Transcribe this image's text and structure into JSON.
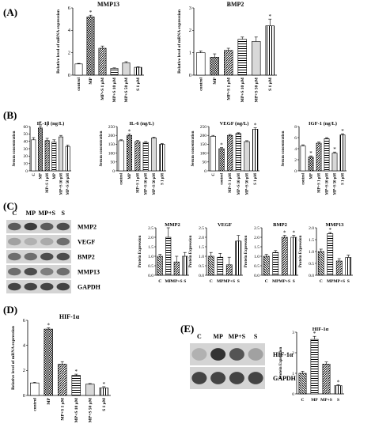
{
  "panels": {
    "A": "(A)",
    "B": "(B)",
    "C": "(C)",
    "D": "(D)",
    "E": "(E)"
  },
  "colors": {
    "ink": "#000000",
    "bar_fill_light": "#ffffff",
    "band_dark": "#2a2a2a",
    "membrane": "#d4d4d4"
  },
  "chart_data": [
    {
      "id": "A1",
      "type": "bar",
      "title": "MMP13",
      "ylabel": "Relative level of mRNA expression",
      "categories": [
        "control",
        "MP",
        "MP+S 1 μM",
        "MP+S 10 μM",
        "MP+S 50 μM",
        "S 1 μM"
      ],
      "values": [
        1.0,
        5.2,
        2.4,
        0.6,
        1.1,
        0.7
      ],
      "errors": [
        0.05,
        0.15,
        0.2,
        0.05,
        0.1,
        0.05
      ],
      "ylim": [
        0,
        6
      ],
      "yticks": [
        0,
        2,
        4,
        6
      ],
      "annotations": [
        "",
        "*",
        "",
        "",
        "",
        ""
      ]
    },
    {
      "id": "A2",
      "type": "bar",
      "title": "BMP2",
      "ylabel": "Relative level of mRNA expression",
      "categories": [
        "control",
        "MP",
        "MP+S 1 μM",
        "MP+S 10 μM",
        "MP+S 50 μM",
        "S 1 μM"
      ],
      "values": [
        1.0,
        0.8,
        1.1,
        1.6,
        1.5,
        2.2
      ],
      "errors": [
        0.08,
        0.15,
        0.1,
        0.1,
        0.2,
        0.3
      ],
      "ylim": [
        0,
        3
      ],
      "yticks": [
        0,
        1,
        2,
        3
      ],
      "annotations": [
        "",
        "",
        "",
        "",
        "",
        "*"
      ]
    },
    {
      "id": "B1",
      "type": "bar",
      "title": "IL-1β (ng/L)",
      "ylabel": "Serum concentration",
      "categories": [
        "C",
        "MP",
        "MP+S 1 μM",
        "MP",
        "MP+S 10 μM",
        "MP+S 50 μM"
      ],
      "values": [
        42,
        58,
        41,
        39,
        46,
        33
      ],
      "errors": [
        3,
        3,
        3,
        3,
        2,
        2
      ],
      "ylim": [
        0,
        60
      ],
      "yticks": [
        0,
        10,
        20,
        30,
        40,
        50,
        60
      ],
      "annotations": [
        "",
        "*",
        "",
        "",
        "",
        ""
      ]
    },
    {
      "id": "B2",
      "type": "bar",
      "title": "IL-6 (ng/L)",
      "ylabel": "Serum concentration",
      "categories": [
        "control",
        "MP",
        "MP+S 1 μM",
        "MP+S 10 μM",
        "MP+S 50 μM",
        "S 1 μM"
      ],
      "values": [
        170,
        200,
        165,
        160,
        185,
        150
      ],
      "errors": [
        5,
        8,
        6,
        5,
        5,
        5
      ],
      "ylim": [
        0,
        250
      ],
      "yticks": [
        0,
        50,
        100,
        150,
        200,
        250
      ],
      "annotations": [
        "",
        "*",
        "",
        "",
        "",
        ""
      ]
    },
    {
      "id": "B3",
      "type": "bar",
      "title": "VEGF (ng/L)",
      "ylabel": "Serum concentration",
      "categories": [
        "C",
        "control",
        "MP+S 1 μM",
        "MP+S 10 μM",
        "MP+S 50 μM",
        "S 1 μM"
      ],
      "values": [
        195,
        125,
        200,
        210,
        165,
        235
      ],
      "errors": [
        5,
        6,
        5,
        5,
        5,
        8
      ],
      "ylim": [
        0,
        250
      ],
      "yticks": [
        0,
        50,
        100,
        150,
        200,
        250
      ],
      "annotations": [
        "",
        "*",
        "",
        "",
        "",
        "*"
      ]
    },
    {
      "id": "B4",
      "type": "bar",
      "title": "IGF-1 (ng/L)",
      "ylabel": "Serum concentration",
      "categories": [
        "control",
        "MP",
        "MP+S 1 μM",
        "MP+S 10 μM",
        "MP+S 50 μM",
        "S 1 μM"
      ],
      "values": [
        4.5,
        2.5,
        5.0,
        5.8,
        3.2,
        6.5
      ],
      "errors": [
        0.2,
        0.2,
        0.2,
        0.2,
        0.2,
        0.2
      ],
      "ylim": [
        0,
        8
      ],
      "yticks": [
        0,
        2,
        4,
        6,
        8
      ],
      "annotations": [
        "",
        "*",
        "",
        "",
        "*",
        "*"
      ]
    },
    {
      "id": "C1",
      "type": "bar",
      "title": "MMP2",
      "ylabel": "Protein Expression",
      "categories": [
        "C",
        "MP",
        "MP+S",
        "S"
      ],
      "values": [
        1.0,
        2.0,
        0.7,
        1.0
      ],
      "errors": [
        0.1,
        0.5,
        0.3,
        0.2
      ],
      "ylim": [
        0,
        2.5
      ],
      "yticks": [
        0.0,
        0.5,
        1.0,
        1.5,
        2.0,
        2.5
      ],
      "annotations": [
        "",
        "",
        "",
        ""
      ]
    },
    {
      "id": "C2",
      "type": "bar",
      "title": "VEGF",
      "ylabel": "Protein Expression",
      "categories": [
        "C",
        "MP",
        "MP+S",
        "S"
      ],
      "values": [
        1.0,
        0.95,
        0.55,
        1.8
      ],
      "errors": [
        0.2,
        0.2,
        0.4,
        0.3
      ],
      "ylim": [
        0,
        2.5
      ],
      "yticks": [
        0.0,
        0.5,
        1.0,
        1.5,
        2.0,
        2.5
      ],
      "annotations": [
        "",
        "",
        "",
        ""
      ]
    },
    {
      "id": "C3",
      "type": "bar",
      "title": "BMP2",
      "ylabel": "Protein Expression",
      "categories": [
        "C",
        "MP",
        "MP+S",
        "S"
      ],
      "values": [
        1.0,
        1.2,
        2.0,
        2.0
      ],
      "errors": [
        0.1,
        0.1,
        0.1,
        0.1
      ],
      "ylim": [
        0,
        2.5
      ],
      "yticks": [
        0.0,
        0.5,
        1.0,
        1.5,
        2.0,
        2.5
      ],
      "annotations": [
        "",
        "",
        "*",
        "*"
      ]
    },
    {
      "id": "C4",
      "type": "bar",
      "title": "MMP13",
      "ylabel": "Protein Expression",
      "categories": [
        "C",
        "MP",
        "MP+S",
        "S"
      ],
      "values": [
        1.0,
        1.75,
        0.6,
        0.75
      ],
      "errors": [
        0.1,
        0.05,
        0.1,
        0.1
      ],
      "ylim": [
        0,
        2.0
      ],
      "yticks": [
        0.0,
        0.5,
        1.0,
        1.5,
        2.0
      ],
      "annotations": [
        "",
        "*",
        "",
        ""
      ]
    },
    {
      "id": "D",
      "type": "bar",
      "title": "HIF-1α",
      "ylabel": "Relative level of mRNA expression",
      "categories": [
        "control",
        "MP",
        "MP+S 1 μM",
        "MP+S 10 μM",
        "MP+S 50 μM",
        "S 1 μM"
      ],
      "values": [
        1.0,
        5.3,
        2.5,
        1.6,
        0.9,
        0.6
      ],
      "errors": [
        0.05,
        0.1,
        0.2,
        0.1,
        0.05,
        0.1
      ],
      "ylim": [
        0,
        6
      ],
      "yticks": [
        0,
        2,
        4,
        6
      ],
      "annotations": [
        "",
        "*",
        "",
        "*",
        "",
        "*"
      ]
    },
    {
      "id": "E",
      "type": "bar",
      "title": "HIF-1α",
      "ylabel": "Protein Expression",
      "categories": [
        "C",
        "MP",
        "MP+S",
        "S"
      ],
      "values": [
        1.0,
        2.65,
        1.45,
        0.4
      ],
      "errors": [
        0.1,
        0.15,
        0.1,
        0.05
      ],
      "ylim": [
        0,
        3
      ],
      "yticks": [
        0,
        1,
        2,
        3
      ],
      "annotations": [
        "",
        "*",
        "",
        "*"
      ]
    }
  ],
  "blots": {
    "C": {
      "lanes": [
        "C",
        "MP",
        "MP+S",
        "S"
      ],
      "rows": [
        "MMP2",
        "VEGF",
        "BMP2",
        "MMP13",
        "GAPDH"
      ],
      "intensity": [
        [
          0.7,
          0.9,
          0.7,
          0.8
        ],
        [
          0.3,
          0.2,
          0.25,
          0.6
        ],
        [
          0.6,
          0.6,
          0.8,
          0.8
        ],
        [
          0.6,
          0.8,
          0.5,
          0.6
        ],
        [
          0.85,
          0.85,
          0.85,
          0.85
        ]
      ]
    },
    "E": {
      "lanes": [
        "C",
        "MP",
        "MP+S",
        "S"
      ],
      "rows": [
        "HIF-1α",
        "GAPDH"
      ],
      "intensity": [
        [
          0.2,
          0.95,
          0.75,
          0.3
        ],
        [
          0.85,
          0.85,
          0.85,
          0.85
        ]
      ]
    }
  }
}
